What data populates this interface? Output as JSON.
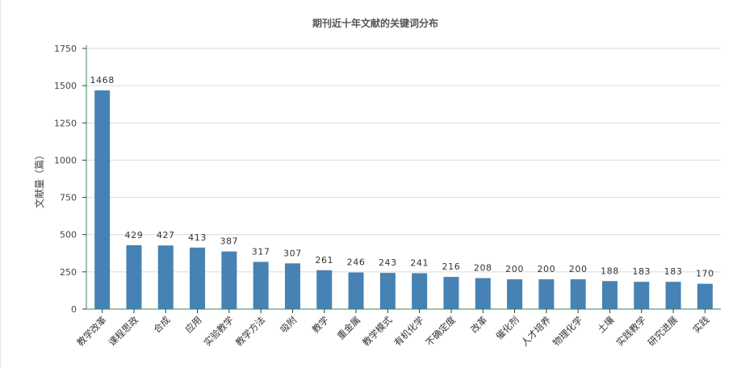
{
  "chart_data": {
    "type": "bar",
    "title": "期刊近十年文献的关键词分布",
    "xlabel": "",
    "ylabel": "文献量（篇）",
    "ylim": [
      0,
      1750
    ],
    "yticks": [
      0,
      250,
      500,
      750,
      1000,
      1250,
      1500,
      1750
    ],
    "grid": true,
    "bar_color": "#4682b4",
    "axis_color": "#2e8b57",
    "categories": [
      "教学改革",
      "课程思政",
      "合成",
      "应用",
      "实验教学",
      "教学方法",
      "吸附",
      "教学",
      "重金属",
      "教学模式",
      "有机化学",
      "不确定度",
      "改革",
      "催化剂",
      "人才培养",
      "物理化学",
      "土壤",
      "实践教学",
      "研究进展",
      "实践"
    ],
    "values": [
      1468,
      429,
      427,
      413,
      387,
      317,
      307,
      261,
      246,
      243,
      241,
      216,
      208,
      200,
      200,
      200,
      188,
      183,
      183,
      170
    ]
  }
}
